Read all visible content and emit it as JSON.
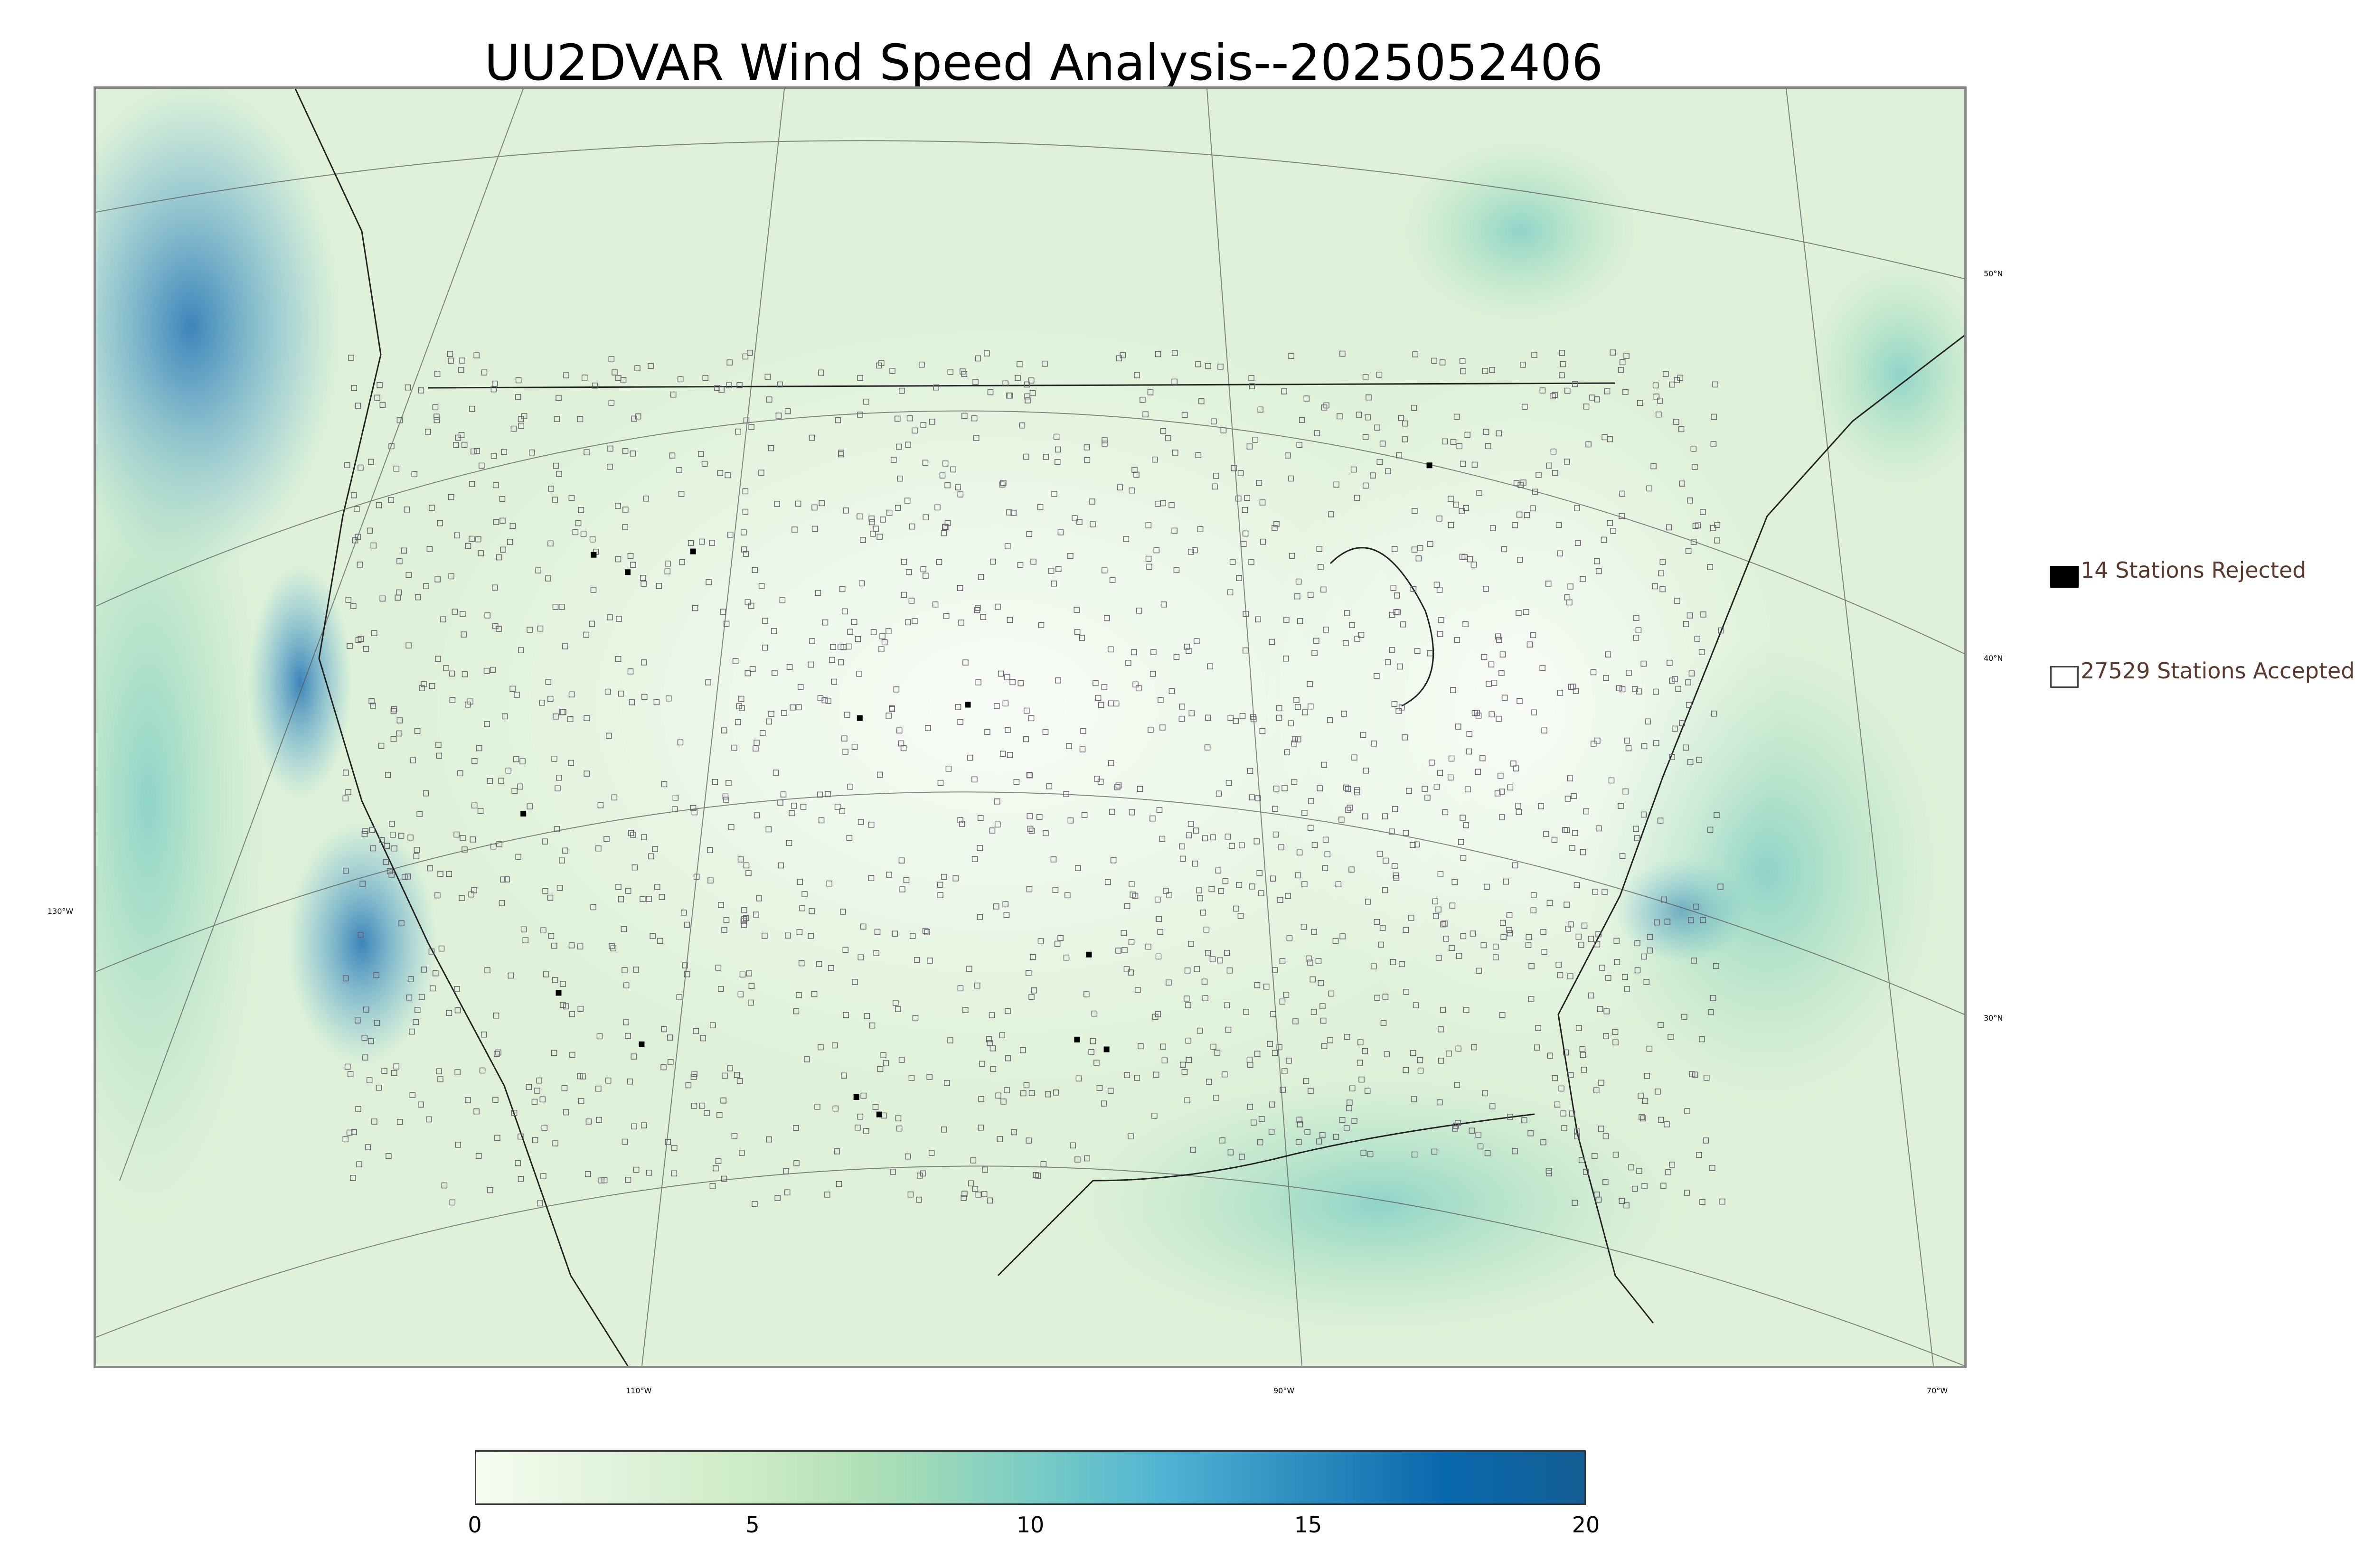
{
  "title": "UU2DVAR Wind Speed Analysis--2025052406",
  "map": {
    "lon_labels": [
      "130°W",
      "110°W",
      "90°W",
      "70°W"
    ],
    "lat_labels": [
      "50°N",
      "40°N",
      "30°N"
    ],
    "colors": {
      "land": "#eaf6e4",
      "ocean_base": "#d7efd2",
      "strong": "#4aa7cf",
      "very_strong": "#2b78b6"
    }
  },
  "legend": {
    "rejected": {
      "count": "14",
      "label": "14 Stations Rejected"
    },
    "accepted": {
      "count": "27529",
      "label": "27529 Stations Accepted"
    }
  },
  "colorbar": {
    "ticks": [
      "0",
      "5",
      "10",
      "15",
      "20"
    ],
    "values": [
      0,
      5,
      10,
      15,
      20
    ],
    "min": 0,
    "max": 20,
    "colors": [
      "#f7fcf0",
      "#e0f3db",
      "#ccebc5",
      "#a8ddb5",
      "#7bccc4",
      "#4eb3d3",
      "#2b8cbe",
      "#0868ac",
      "#155e94"
    ]
  }
}
